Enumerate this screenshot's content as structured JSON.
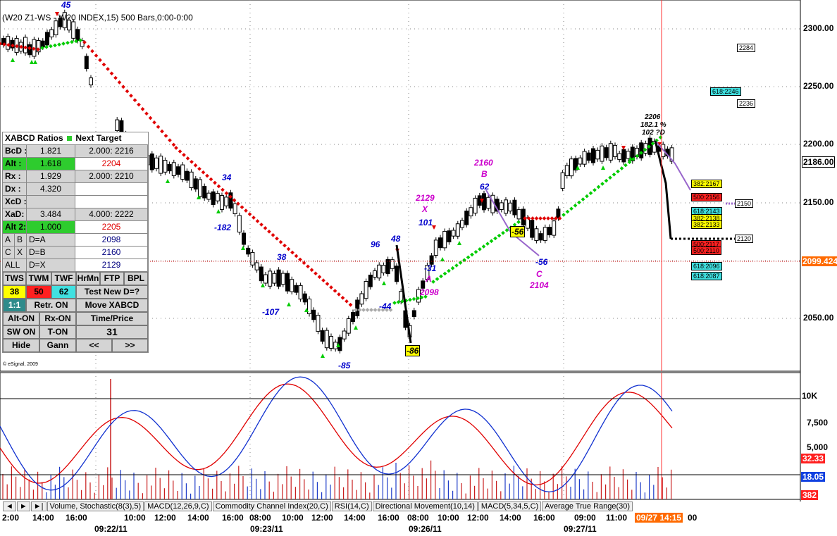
{
  "title": "(W20 Z1-WS - W20 INDEX,15) 500 Bars,0:00-0:00",
  "copyright": "© eSignal, 2009",
  "price_axis": {
    "ticks": [
      "2300.00",
      "2250.00",
      "2200.00",
      "2150.00",
      "2100.00",
      "2050.00"
    ],
    "last_price": "2186.00",
    "crosshair_price": "2099.424"
  },
  "indicator_axis": {
    "ticks": [
      "10K",
      "7,500",
      "5,000"
    ],
    "stoch_red": "32.33",
    "stoch_blue": "18.05",
    "volume": "382"
  },
  "projection_tags": [
    {
      "text": "2284",
      "bg": "#ffffff"
    },
    {
      "text": "618:2246",
      "bg": "#40e0e0"
    },
    {
      "text": "2236",
      "bg": "#ffffff"
    },
    {
      "text": "382:2167",
      "bg": "#ffff00"
    },
    {
      "text": "500:2156",
      "bg": "#ff2020"
    },
    {
      "text": "2150",
      "bg": "#ffffff"
    },
    {
      "text": "618:2143",
      "bg": "#40e0e0"
    },
    {
      "text": "382:2138",
      "bg": "#ffff00"
    },
    {
      "text": "382:2133",
      "bg": "#ffff00"
    },
    {
      "text": "2120",
      "bg": "#ffffff"
    },
    {
      "text": "500:2117",
      "bg": "#ff2020"
    },
    {
      "text": "500:2110",
      "bg": "#ff2020"
    },
    {
      "text": "618:2096",
      "bg": "#40e0e0"
    },
    {
      "text": "618:2087",
      "bg": "#40e0e0"
    }
  ],
  "pattern_labels": {
    "x_price": "2129",
    "x": "X",
    "a_label": "A",
    "a_price": "2098",
    "b_price": "2160",
    "b": "B",
    "c": "C",
    "c_price": "2104",
    "d_price": "2206",
    "d_ratio": "182.1 %",
    "d_extra": "102 ?D"
  },
  "swing_labels": [
    "45",
    "34",
    "-182",
    "38",
    "-107",
    "-85",
    "96",
    "48",
    "-44",
    "-86",
    "101",
    "-31",
    "62",
    "-56",
    "-56"
  ],
  "panel": {
    "header": "XABCD Ratios",
    "header2": "Next Target",
    "rows": [
      {
        "k": "BcD :",
        "v": "1.821",
        "t": "2.000: 2216"
      },
      {
        "k": "Alt  :",
        "v": "1.618",
        "t": "2204"
      },
      {
        "k": "Rx  :",
        "v": "1.929",
        "t": "2.000: 2210"
      },
      {
        "k": "Dx  :",
        "v": "4.320",
        "t": ""
      },
      {
        "k": "XcD :",
        "v": "",
        "t": ""
      },
      {
        "k": "XaD:",
        "v": "3.484",
        "t": "4.000: 2222"
      },
      {
        "k": "Alt 2:",
        "v": "1.000",
        "t": "2205"
      }
    ],
    "pairs": [
      {
        "a": "A",
        "b": "B",
        "eq": "D=A",
        "val": "2098"
      },
      {
        "a": "C",
        "b": "X",
        "eq": "D=B",
        "val": "2160"
      },
      {
        "a": "ALL",
        "b": "",
        "eq": "D=X",
        "val": "2129"
      }
    ],
    "buttons_row1": [
      "TWS",
      "TWM",
      "TWF",
      "HrMn",
      "FTP",
      "BPL"
    ],
    "values_row": [
      "38",
      "50",
      "62"
    ],
    "test_new": "Test New D=?",
    "ratio": "1:1",
    "retr": "Retr. ON",
    "move": "Move XABCD",
    "alt_on": "Alt-ON",
    "rx_on": "Rx-ON",
    "time_price": "Time/Price",
    "sw_on": "SW ON",
    "t_on": "T-ON",
    "count": "31",
    "hide": "Hide",
    "gann": "Gann",
    "prev": "<<",
    "next": ">>"
  },
  "tabs": [
    "Volume, Stochastic(8(3),5)",
    "MACD(12,26,9,C)",
    "Commodity Channel Index(20,C)",
    "RSI(14,C)",
    "Directional Movement(10,14)",
    "MACD(5,34,5,C)",
    "Average True Range(30)"
  ],
  "time_axis": {
    "labels": [
      "2:00",
      "14:00",
      "16:00",
      "09:22/11",
      "10:00",
      "12:00",
      "14:00",
      "16:00",
      "08:00",
      "09:23/11",
      "10:00",
      "12:00",
      "14:00",
      "16:00",
      "08:00",
      "09:26/11",
      "10:00",
      "12:00",
      "14:00",
      "16:00",
      "09:00",
      "09:27/11",
      "11:00"
    ],
    "cursor_time": "09/27 14:15",
    "cursor_tail": "00"
  },
  "colors": {
    "up_marker": "#00cc00",
    "down_marker": "#e00000",
    "pattern": "#9966cc",
    "label_blue": "#0000cc",
    "label_magenta": "#cc00cc"
  }
}
